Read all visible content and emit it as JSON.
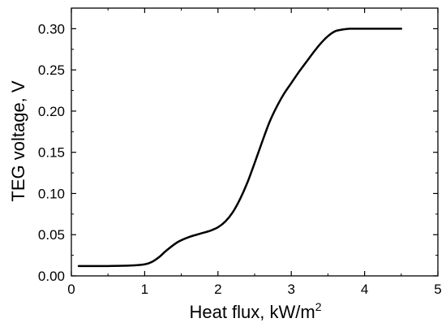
{
  "chart_data": {
    "type": "line",
    "xlabel": "Heat flux, kW/m",
    "xlabel_sup": "2",
    "ylabel": "TEG voltage, V",
    "xlim": [
      0,
      5
    ],
    "ylim": [
      0,
      0.325
    ],
    "grid": false,
    "x_ticks": [
      0,
      1,
      2,
      3,
      4,
      5
    ],
    "x_tick_labels": [
      "0",
      "1",
      "2",
      "3",
      "4",
      "5"
    ],
    "y_ticks": [
      0,
      0.05,
      0.1,
      0.15,
      0.2,
      0.25,
      0.3
    ],
    "y_tick_labels": [
      "0.00",
      "0.05",
      "0.10",
      "0.15",
      "0.20",
      "0.25",
      "0.30"
    ],
    "series": [
      {
        "color": "#000000",
        "x": [
          0.1,
          0.5,
          0.8,
          1.0,
          1.1,
          1.2,
          1.3,
          1.45,
          1.6,
          1.75,
          1.9,
          2.0,
          2.1,
          2.2,
          2.3,
          2.4,
          2.5,
          2.6,
          2.7,
          2.8,
          2.9,
          3.0,
          3.1,
          3.2,
          3.3,
          3.4,
          3.5,
          3.6,
          3.7,
          3.8,
          3.9,
          4.0,
          4.2,
          4.5
        ],
        "y": [
          0.012,
          0.012,
          0.0125,
          0.014,
          0.017,
          0.023,
          0.031,
          0.041,
          0.047,
          0.051,
          0.055,
          0.059,
          0.066,
          0.077,
          0.093,
          0.113,
          0.137,
          0.162,
          0.186,
          0.205,
          0.221,
          0.234,
          0.247,
          0.259,
          0.271,
          0.282,
          0.291,
          0.297,
          0.299,
          0.3,
          0.3,
          0.3,
          0.3,
          0.3
        ]
      }
    ]
  }
}
